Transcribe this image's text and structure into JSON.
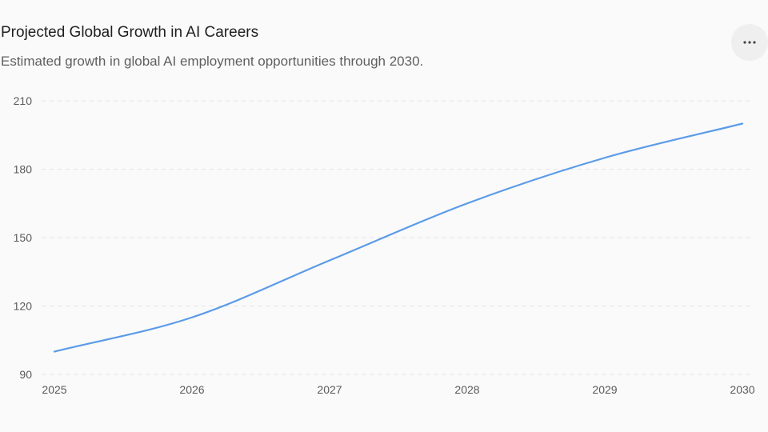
{
  "title": "Projected Global Growth in AI Careers",
  "subtitle": "Estimated growth in global AI employment opportunities through 2030.",
  "menu_icon": "more-horizontal-icon",
  "colors": {
    "line": "#5b9be8",
    "grid": "#e3e3e3"
  },
  "chart_data": {
    "type": "line",
    "title": "Projected Global Growth in AI Careers",
    "subtitle": "Estimated growth in global AI employment opportunities through 2030.",
    "x": [
      "2025",
      "2026",
      "2027",
      "2028",
      "2029",
      "2030"
    ],
    "y_ticks": [
      "90",
      "120",
      "150",
      "180",
      "210"
    ],
    "ylim": [
      90,
      210
    ],
    "grid": "horizontal dashed",
    "legend": "none",
    "smooth": true,
    "series": [
      {
        "values": [
          100,
          115,
          140,
          165,
          185,
          200
        ]
      }
    ]
  }
}
